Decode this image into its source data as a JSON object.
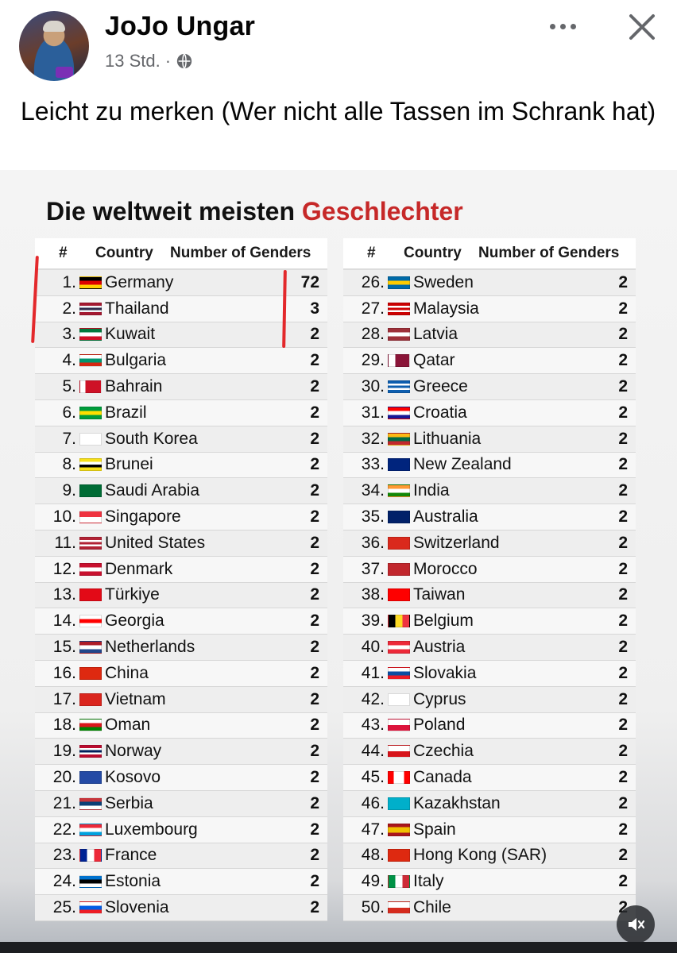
{
  "post": {
    "author": "JoJo Ungar",
    "time": "13 Std.",
    "separator": "·",
    "privacy_icon": "globe-icon",
    "text": "Leicht zu merken (Wer nicht alle Tassen im Schrank hat)"
  },
  "graphic": {
    "title": "Die weltweit meisten",
    "title_accent": "Geschlechter",
    "accent_color": "#c62828",
    "columns": {
      "num": "#",
      "country": "Country",
      "genders": "Number of Genders"
    },
    "left_rows": [
      {
        "rank": "1.",
        "country": "Germany",
        "value": "72",
        "flag": [
          "#000000",
          "#dd0000",
          "#ffce00"
        ],
        "dir": "h"
      },
      {
        "rank": "2.",
        "country": "Thailand",
        "value": "3",
        "flag": [
          "#a51931",
          "#f4f5f8",
          "#2d2a4a",
          "#f4f5f8",
          "#a51931"
        ],
        "dir": "h"
      },
      {
        "rank": "3.",
        "country": "Kuwait",
        "value": "2",
        "flag": [
          "#007a3d",
          "#ffffff",
          "#ce1126"
        ],
        "dir": "h"
      },
      {
        "rank": "4.",
        "country": "Bulgaria",
        "value": "2",
        "flag": [
          "#ffffff",
          "#00966e",
          "#d62612"
        ],
        "dir": "h"
      },
      {
        "rank": "5.",
        "country": "Bahrain",
        "value": "2",
        "flag": [
          "#ffffff",
          "#ce1126",
          "#ce1126",
          "#ce1126"
        ],
        "dir": "v"
      },
      {
        "rank": "6.",
        "country": "Brazil",
        "value": "2",
        "flag": [
          "#009c3b",
          "#ffdf00",
          "#009c3b"
        ],
        "dir": "h"
      },
      {
        "rank": "7.",
        "country": "South Korea",
        "value": "2",
        "flag": [
          "#ffffff"
        ],
        "dir": "h"
      },
      {
        "rank": "8.",
        "country": "Brunei",
        "value": "2",
        "flag": [
          "#f7e017",
          "#ffffff",
          "#000000",
          "#f7e017"
        ],
        "dir": "h"
      },
      {
        "rank": "9.",
        "country": "Saudi Arabia",
        "value": "2",
        "flag": [
          "#006c35"
        ],
        "dir": "h"
      },
      {
        "rank": "10.",
        "country": "Singapore",
        "value": "2",
        "flag": [
          "#ef3340",
          "#ffffff"
        ],
        "dir": "h"
      },
      {
        "rank": "11.",
        "country": "United States",
        "value": "2",
        "flag": [
          "#b22234",
          "#ffffff",
          "#b22234",
          "#ffffff",
          "#b22234"
        ],
        "dir": "h"
      },
      {
        "rank": "12.",
        "country": "Denmark",
        "value": "2",
        "flag": [
          "#c8102e",
          "#ffffff",
          "#c8102e"
        ],
        "dir": "h"
      },
      {
        "rank": "13.",
        "country": "Türkiye",
        "value": "2",
        "flag": [
          "#e30a17"
        ],
        "dir": "h"
      },
      {
        "rank": "14.",
        "country": "Georgia",
        "value": "2",
        "flag": [
          "#ffffff",
          "#ff0000",
          "#ffffff"
        ],
        "dir": "h"
      },
      {
        "rank": "15.",
        "country": "Netherlands",
        "value": "2",
        "flag": [
          "#ae1c28",
          "#ffffff",
          "#21468b"
        ],
        "dir": "h"
      },
      {
        "rank": "16.",
        "country": "China",
        "value": "2",
        "flag": [
          "#de2910"
        ],
        "dir": "h"
      },
      {
        "rank": "17.",
        "country": "Vietnam",
        "value": "2",
        "flag": [
          "#da251d"
        ],
        "dir": "h"
      },
      {
        "rank": "18.",
        "country": "Oman",
        "value": "2",
        "flag": [
          "#ffffff",
          "#db161b",
          "#008000"
        ],
        "dir": "h"
      },
      {
        "rank": "19.",
        "country": "Norway",
        "value": "2",
        "flag": [
          "#ba0c2f",
          "#ffffff",
          "#00205b",
          "#ffffff",
          "#ba0c2f"
        ],
        "dir": "h"
      },
      {
        "rank": "20.",
        "country": "Kosovo",
        "value": "2",
        "flag": [
          "#244aa5"
        ],
        "dir": "h"
      },
      {
        "rank": "21.",
        "country": "Serbia",
        "value": "2",
        "flag": [
          "#c6363c",
          "#0c4076",
          "#ffffff"
        ],
        "dir": "h"
      },
      {
        "rank": "22.",
        "country": "Luxembourg",
        "value": "2",
        "flag": [
          "#ed2939",
          "#ffffff",
          "#00a1de"
        ],
        "dir": "h"
      },
      {
        "rank": "23.",
        "country": "France",
        "value": "2",
        "flag": [
          "#002395",
          "#ffffff",
          "#ed2939"
        ],
        "dir": "v"
      },
      {
        "rank": "24.",
        "country": "Estonia",
        "value": "2",
        "flag": [
          "#0072ce",
          "#000000",
          "#ffffff"
        ],
        "dir": "h"
      },
      {
        "rank": "25.",
        "country": "Slovenia",
        "value": "2",
        "flag": [
          "#ffffff",
          "#005ce5",
          "#ed1c24"
        ],
        "dir": "h"
      }
    ],
    "right_rows": [
      {
        "rank": "26.",
        "country": "Sweden",
        "value": "2",
        "flag": [
          "#006aa7",
          "#fecc00",
          "#006aa7"
        ],
        "dir": "h"
      },
      {
        "rank": "27.",
        "country": "Malaysia",
        "value": "2",
        "flag": [
          "#cc0001",
          "#ffffff",
          "#cc0001",
          "#ffffff",
          "#cc0001"
        ],
        "dir": "h"
      },
      {
        "rank": "28.",
        "country": "Latvia",
        "value": "2",
        "flag": [
          "#9e3039",
          "#ffffff",
          "#9e3039"
        ],
        "dir": "h"
      },
      {
        "rank": "29.",
        "country": "Qatar",
        "value": "2",
        "flag": [
          "#ffffff",
          "#8a1538",
          "#8a1538"
        ],
        "dir": "v"
      },
      {
        "rank": "30.",
        "country": "Greece",
        "value": "2",
        "flag": [
          "#0d5eaf",
          "#ffffff",
          "#0d5eaf",
          "#ffffff",
          "#0d5eaf"
        ],
        "dir": "h"
      },
      {
        "rank": "31.",
        "country": "Croatia",
        "value": "2",
        "flag": [
          "#ff0000",
          "#ffffff",
          "#171796"
        ],
        "dir": "h"
      },
      {
        "rank": "32.",
        "country": "Lithuania",
        "value": "2",
        "flag": [
          "#fdb913",
          "#006a44",
          "#c1272d"
        ],
        "dir": "h"
      },
      {
        "rank": "33.",
        "country": "New Zealand",
        "value": "2",
        "flag": [
          "#00247d"
        ],
        "dir": "h"
      },
      {
        "rank": "34.",
        "country": "India",
        "value": "2",
        "flag": [
          "#ff9933",
          "#ffffff",
          "#138808"
        ],
        "dir": "h"
      },
      {
        "rank": "35.",
        "country": "Australia",
        "value": "2",
        "flag": [
          "#012169"
        ],
        "dir": "h"
      },
      {
        "rank": "36.",
        "country": "Switzerland",
        "value": "2",
        "flag": [
          "#da291c"
        ],
        "dir": "h"
      },
      {
        "rank": "37.",
        "country": "Morocco",
        "value": "2",
        "flag": [
          "#c1272d"
        ],
        "dir": "h"
      },
      {
        "rank": "38.",
        "country": "Taiwan",
        "value": "2",
        "flag": [
          "#fe0000"
        ],
        "dir": "h"
      },
      {
        "rank": "39.",
        "country": "Belgium",
        "value": "2",
        "flag": [
          "#000000",
          "#fdda24",
          "#ef3340"
        ],
        "dir": "v"
      },
      {
        "rank": "40.",
        "country": "Austria",
        "value": "2",
        "flag": [
          "#ed2939",
          "#ffffff",
          "#ed2939"
        ],
        "dir": "h"
      },
      {
        "rank": "41.",
        "country": "Slovakia",
        "value": "2",
        "flag": [
          "#ffffff",
          "#0b4ea2",
          "#ee1c25"
        ],
        "dir": "h"
      },
      {
        "rank": "42.",
        "country": "Cyprus",
        "value": "2",
        "flag": [
          "#ffffff"
        ],
        "dir": "h"
      },
      {
        "rank": "43.",
        "country": "Poland",
        "value": "2",
        "flag": [
          "#ffffff",
          "#dc143c"
        ],
        "dir": "h"
      },
      {
        "rank": "44.",
        "country": "Czechia",
        "value": "2",
        "flag": [
          "#ffffff",
          "#d7141a"
        ],
        "dir": "h"
      },
      {
        "rank": "45.",
        "country": "Canada",
        "value": "2",
        "flag": [
          "#ff0000",
          "#ffffff",
          "#ffffff",
          "#ff0000"
        ],
        "dir": "v"
      },
      {
        "rank": "46.",
        "country": "Kazakhstan",
        "value": "2",
        "flag": [
          "#00afca"
        ],
        "dir": "h"
      },
      {
        "rank": "47.",
        "country": "Spain",
        "value": "2",
        "flag": [
          "#aa151b",
          "#f1bf00",
          "#f1bf00",
          "#aa151b"
        ],
        "dir": "h"
      },
      {
        "rank": "48.",
        "country": "Hong Kong (SAR)",
        "value": "2",
        "flag": [
          "#de2910"
        ],
        "dir": "h"
      },
      {
        "rank": "49.",
        "country": "Italy",
        "value": "2",
        "flag": [
          "#009246",
          "#ffffff",
          "#ce2b37"
        ],
        "dir": "v"
      },
      {
        "rank": "50.",
        "country": "Chile",
        "value": "2",
        "flag": [
          "#ffffff",
          "#d52b1e"
        ],
        "dir": "h"
      }
    ]
  }
}
